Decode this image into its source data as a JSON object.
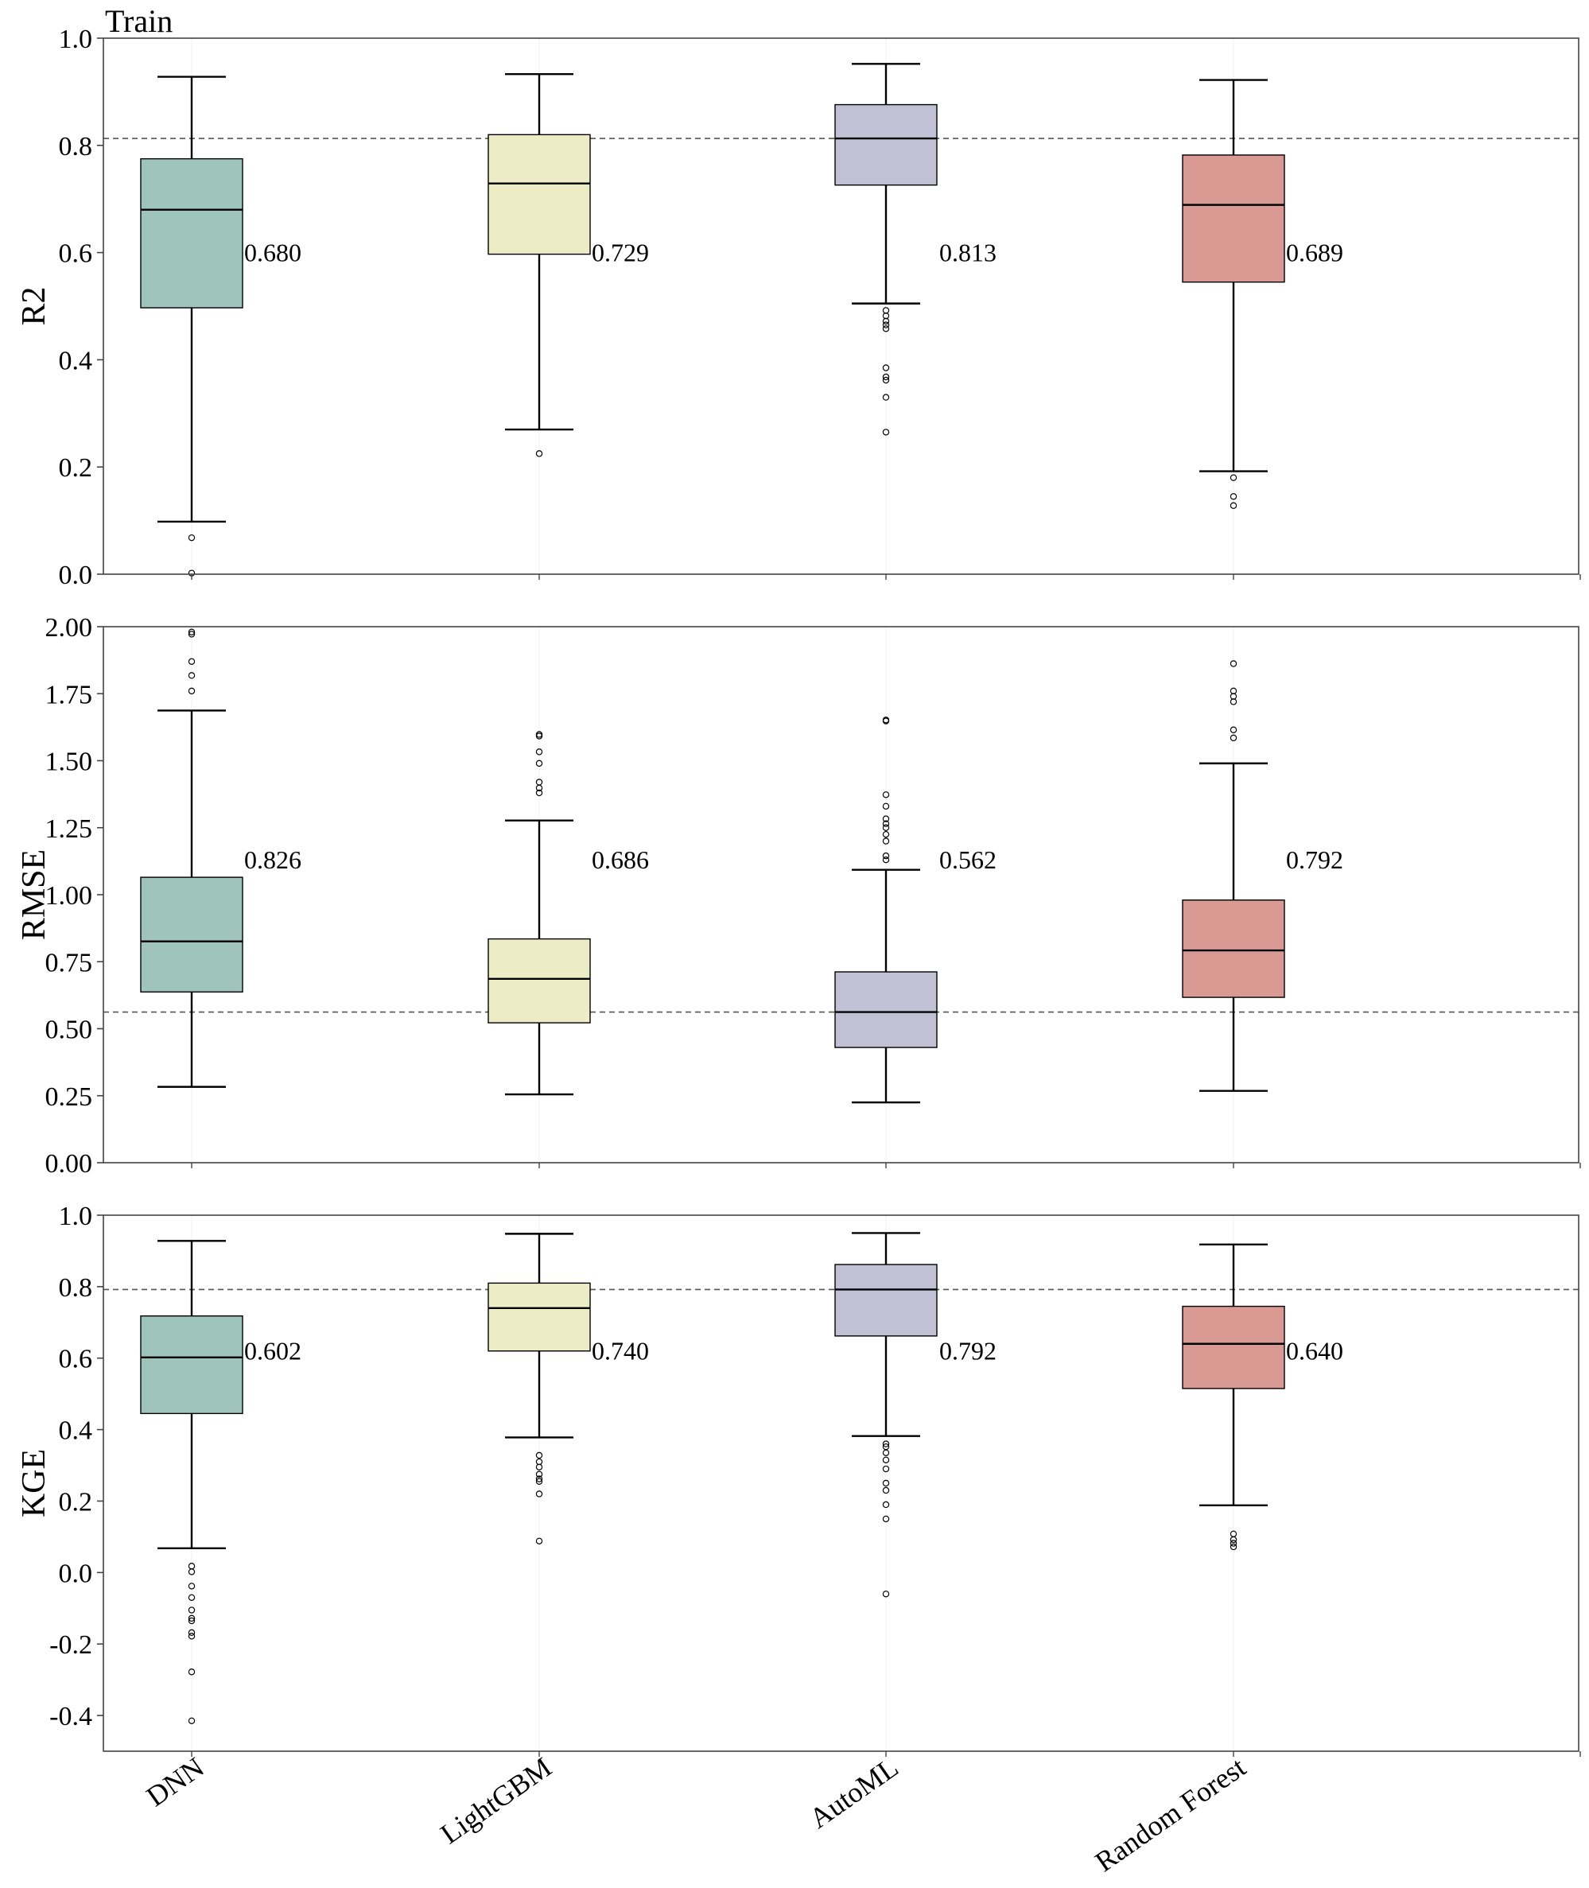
{
  "title": "Train",
  "colors": {
    "DNN": "#9fc4bb",
    "LightGBM": "#ececc5",
    "AutoML": "#c2c0d4",
    "Random Forest": "#da9a94"
  },
  "chart_data": {
    "type": "box",
    "categories": [
      "DNN",
      "LightGBM",
      "AutoML",
      "Random Forest"
    ],
    "panels": [
      {
        "ylabel": "R2",
        "ylim": [
          0.0,
          1.0
        ],
        "yticks": [
          0.0,
          0.2,
          0.4,
          0.6,
          0.8,
          1.0
        ],
        "ytick_labels": [
          "0.0",
          "0.2",
          "0.4",
          "0.6",
          "0.8",
          "1.0"
        ],
        "reference_line": 0.813,
        "median_label_value": 0.6,
        "boxes": [
          {
            "whisker_low": 0.098,
            "q1": 0.497,
            "median": 0.68,
            "q3": 0.775,
            "whisker_high": 0.928,
            "outliers": [
              0.068,
              0.002
            ],
            "median_label": "0.680"
          },
          {
            "whisker_low": 0.27,
            "q1": 0.597,
            "median": 0.729,
            "q3": 0.82,
            "whisker_high": 0.933,
            "outliers": [
              0.225
            ],
            "median_label": "0.729"
          },
          {
            "whisker_low": 0.505,
            "q1": 0.726,
            "median": 0.813,
            "q3": 0.876,
            "whisker_high": 0.952,
            "outliers": [
              0.492,
              0.482,
              0.472,
              0.465,
              0.458,
              0.385,
              0.368,
              0.362,
              0.33,
              0.265
            ],
            "median_label": "0.813"
          },
          {
            "whisker_low": 0.192,
            "q1": 0.545,
            "median": 0.689,
            "q3": 0.782,
            "whisker_high": 0.922,
            "outliers": [
              0.18,
              0.145,
              0.128
            ],
            "median_label": "0.689"
          }
        ]
      },
      {
        "ylabel": "RMSE",
        "ylim": [
          0.0,
          2.0
        ],
        "yticks": [
          0.0,
          0.25,
          0.5,
          0.75,
          1.0,
          1.25,
          1.5,
          1.75,
          2.0
        ],
        "ytick_labels": [
          "0.00",
          "0.25",
          "0.50",
          "0.75",
          "1.00",
          "1.25",
          "1.50",
          "1.75",
          "2.00"
        ],
        "reference_line": 0.562,
        "median_label_value": 1.13,
        "boxes": [
          {
            "whisker_low": 0.283,
            "q1": 0.637,
            "median": 0.826,
            "q3": 1.065,
            "whisker_high": 1.687,
            "outliers": [
              1.98,
              1.972,
              1.87,
              1.818,
              1.76
            ],
            "median_label": "0.826"
          },
          {
            "whisker_low": 0.255,
            "q1": 0.522,
            "median": 0.686,
            "q3": 0.835,
            "whisker_high": 1.277,
            "outliers": [
              1.598,
              1.592,
              1.533,
              1.49,
              1.42,
              1.398,
              1.38
            ],
            "median_label": "0.686"
          },
          {
            "whisker_low": 0.225,
            "q1": 0.43,
            "median": 0.562,
            "q3": 0.712,
            "whisker_high": 1.093,
            "outliers": [
              1.652,
              1.648,
              1.373,
              1.33,
              1.283,
              1.265,
              1.25,
              1.225,
              1.2,
              1.145,
              1.13
            ],
            "median_label": "0.562"
          },
          {
            "whisker_low": 0.268,
            "q1": 0.617,
            "median": 0.792,
            "q3": 0.98,
            "whisker_high": 1.49,
            "outliers": [
              1.862,
              1.76,
              1.74,
              1.72,
              1.615,
              1.585
            ],
            "median_label": "0.792"
          }
        ]
      },
      {
        "ylabel": "KGE",
        "ylim": [
          -0.5,
          1.0
        ],
        "yticks": [
          -0.4,
          -0.2,
          0.0,
          0.2,
          0.4,
          0.6,
          0.8,
          1.0
        ],
        "ytick_labels": [
          "-0.4",
          "-0.2",
          "0.0",
          "0.2",
          "0.4",
          "0.6",
          "0.8",
          "1.0"
        ],
        "reference_line": 0.792,
        "median_label_value": 0.62,
        "boxes": [
          {
            "whisker_low": 0.068,
            "q1": 0.445,
            "median": 0.602,
            "q3": 0.718,
            "whisker_high": 0.928,
            "outliers": [
              0.018,
              0.002,
              -0.038,
              -0.07,
              -0.105,
              -0.128,
              -0.135,
              -0.168,
              -0.178,
              -0.278,
              -0.415
            ],
            "median_label": "0.602"
          },
          {
            "whisker_low": 0.378,
            "q1": 0.62,
            "median": 0.74,
            "q3": 0.81,
            "whisker_high": 0.948,
            "outliers": [
              0.328,
              0.31,
              0.295,
              0.275,
              0.262,
              0.255,
              0.22,
              0.088
            ],
            "median_label": "0.740"
          },
          {
            "whisker_low": 0.382,
            "q1": 0.662,
            "median": 0.792,
            "q3": 0.862,
            "whisker_high": 0.95,
            "outliers": [
              0.36,
              0.352,
              0.335,
              0.315,
              0.29,
              0.25,
              0.23,
              0.19,
              0.15,
              -0.06
            ],
            "median_label": "0.792"
          },
          {
            "whisker_low": 0.188,
            "q1": 0.515,
            "median": 0.64,
            "q3": 0.745,
            "whisker_high": 0.918,
            "outliers": [
              0.108,
              0.092,
              0.082,
              0.072
            ],
            "median_label": "0.640"
          }
        ]
      }
    ]
  }
}
